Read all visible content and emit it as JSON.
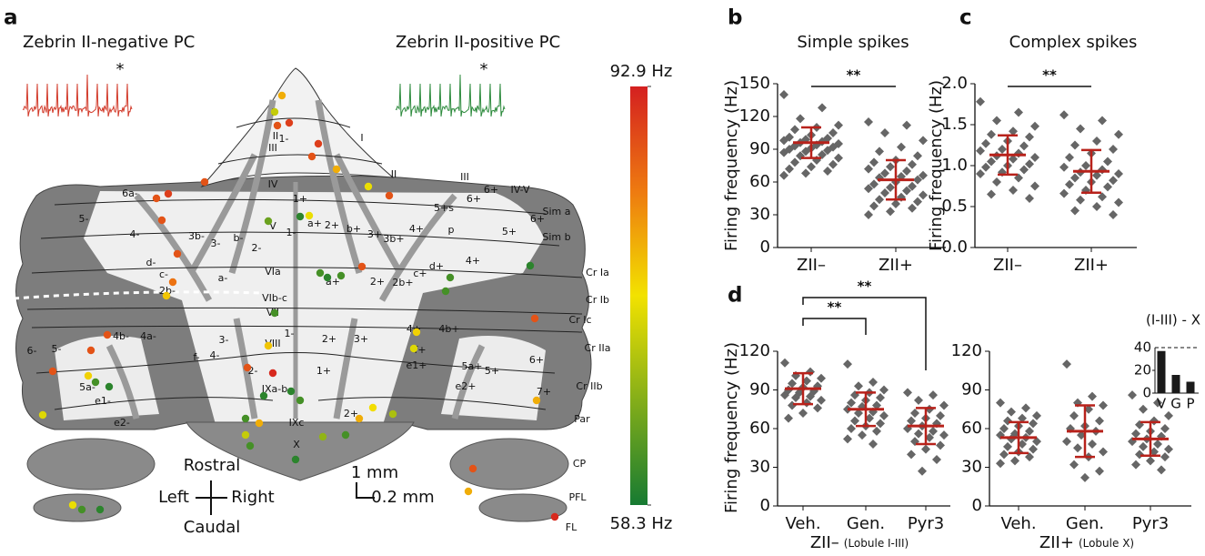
{
  "panel_a": {
    "label": "a",
    "title_left": "Zebrin II-negative PC",
    "title_right": "Zebrin II-positive PC",
    "asterisks": [
      "*",
      "*"
    ],
    "region_labels": [
      "I",
      "II",
      "III",
      "1-",
      "I",
      "II",
      "III",
      "IV",
      "V",
      "1+",
      "1-",
      "2-",
      "b-",
      "3-",
      "3b-",
      "4-",
      "5-",
      "6a-",
      "d-",
      "c-",
      "2b-",
      "a-",
      "VIa",
      "a+",
      "2+",
      "2b+",
      "c+",
      "d+",
      "4+",
      "5+",
      "6+",
      "6+",
      "6+",
      "5+s",
      "4+",
      "3b+",
      "3+",
      "b+",
      "a+",
      "2+",
      "p",
      "Sim a",
      "Sim b",
      "IV-V",
      "Cr Ia",
      "Cr Ib",
      "Cr Ic",
      "VIb-c",
      "VII",
      "VIII",
      "1-",
      "2+",
      "3+",
      "4+",
      "4b+",
      "5a+",
      "5+",
      "6+",
      "7+",
      "Cr IIa",
      "Cr IIb",
      "Par",
      "CP",
      "PFL",
      "FL",
      "f+",
      "e1+",
      "e2+",
      "1+",
      "2-",
      "4-",
      "3-",
      "f-",
      "4a-",
      "4b-",
      "5-",
      "6-",
      "5a-",
      "e1-",
      "e2-",
      "IXa-b",
      "IXc",
      "2+",
      "X"
    ],
    "orientation": {
      "rostral": "Rostral",
      "left": "Left",
      "right": "Right",
      "caudal": "Caudal"
    },
    "scale": [
      "1 mm",
      "0.2 mm"
    ],
    "colorbar": {
      "max": {
        "value": 92.9,
        "label": "92.9 Hz"
      },
      "min": {
        "value": 58.3,
        "label": "58.3 Hz"
      }
    },
    "recordings": [
      80,
      72,
      88,
      90,
      90,
      80,
      88,
      75,
      88,
      90,
      88,
      88,
      65,
      60,
      75,
      88,
      88,
      85,
      78,
      88,
      88,
      88,
      74,
      77,
      62,
      60,
      62,
      78,
      88,
      92,
      62,
      60,
      62,
      88,
      62,
      62,
      60,
      88,
      74,
      77,
      80,
      62,
      80,
      72,
      68,
      62,
      80,
      76,
      70,
      62,
      60,
      80,
      88,
      75,
      62,
      60,
      92,
      60,
      60,
      62
    ]
  },
  "chart_data": [
    {
      "type": "dotplot",
      "panel": "b",
      "title": "Simple spikes",
      "ylabel": "Firing frequency (Hz)",
      "categories": [
        "ZII–",
        "ZII+"
      ],
      "values": [
        [
          140,
          128,
          118,
          112,
          110,
          108,
          105,
          103,
          101,
          100,
          99,
          98,
          97,
          96,
          95,
          94,
          93,
          92,
          91,
          90,
          89,
          88,
          87,
          85,
          84,
          82,
          80,
          78,
          76,
          74,
          72,
          70,
          68,
          66
        ],
        [
          115,
          112,
          105,
          98,
          92,
          88,
          84,
          80,
          78,
          76,
          74,
          72,
          70,
          68,
          66,
          65,
          64,
          62,
          60,
          58,
          56,
          55,
          54,
          52,
          50,
          48,
          46,
          44,
          42,
          40,
          38,
          36,
          33,
          30
        ]
      ],
      "means": [
        96,
        62
      ],
      "errors": [
        14,
        18
      ],
      "ylim": [
        0,
        150
      ],
      "yticks": [
        0,
        30,
        60,
        90,
        120,
        150
      ],
      "significance": [
        "**"
      ]
    },
    {
      "type": "dotplot",
      "panel": "c",
      "title": "Complex spikes",
      "ylabel": "Firing frequency (Hz)",
      "categories": [
        "ZII–",
        "ZII+"
      ],
      "values": [
        [
          1.78,
          1.65,
          1.55,
          1.48,
          1.42,
          1.38,
          1.35,
          1.3,
          1.27,
          1.24,
          1.2,
          1.18,
          1.15,
          1.12,
          1.1,
          1.08,
          1.05,
          1.02,
          1.0,
          0.98,
          0.95,
          0.92,
          0.9,
          0.85,
          0.8,
          0.75,
          0.7,
          0.65,
          0.6
        ],
        [
          1.62,
          1.55,
          1.45,
          1.38,
          1.3,
          1.25,
          1.2,
          1.15,
          1.1,
          1.05,
          1.0,
          0.98,
          0.95,
          0.92,
          0.9,
          0.88,
          0.85,
          0.82,
          0.8,
          0.77,
          0.74,
          0.7,
          0.66,
          0.62,
          0.58,
          0.55,
          0.5,
          0.45,
          0.4
        ]
      ],
      "means": [
        1.13,
        0.93
      ],
      "errors": [
        0.24,
        0.26
      ],
      "ylim": [
        0,
        2
      ],
      "yticks": [
        {
          "value": 0,
          "label": "0.0"
        },
        0.5,
        {
          "value": 1,
          "label": "1.0"
        },
        1.5,
        {
          "value": 2,
          "label": "2.0"
        }
      ],
      "significance": [
        "**"
      ]
    },
    {
      "type": "dotplot",
      "panel": "d",
      "ylabel": "Firing frequency (Hz)",
      "categories": [
        "Veh.",
        "Gen.",
        "Pyr3"
      ],
      "xlabel": "ZII–",
      "xlabel_note": "(Lobule I-III)",
      "values": [
        [
          111,
          104,
          101,
          99,
          97,
          95,
          93,
          92,
          90,
          89,
          88,
          86,
          85,
          84,
          82,
          80,
          78,
          76,
          72,
          68
        ],
        [
          110,
          96,
          93,
          90,
          88,
          86,
          84,
          82,
          80,
          78,
          77,
          75,
          73,
          72,
          70,
          68,
          66,
          64,
          62,
          60,
          58,
          55,
          52,
          48
        ],
        [
          88,
          86,
          82,
          78,
          75,
          72,
          70,
          68,
          66,
          64,
          62,
          60,
          58,
          56,
          55,
          53,
          50,
          47,
          44,
          40,
          36,
          27
        ]
      ],
      "means": [
        91,
        75,
        62
      ],
      "errors": [
        12,
        13,
        14
      ],
      "ylim": [
        0,
        120
      ],
      "yticks": [
        0,
        30,
        60,
        90,
        120
      ],
      "significance": [
        "**",
        "**"
      ]
    },
    {
      "type": "dotplot",
      "categories": [
        "Veh.",
        "Gen.",
        "Pyr3"
      ],
      "xlabel": "ZII+",
      "xlabel_note": "(Lobule X)",
      "values": [
        [
          80,
          76,
          73,
          70,
          68,
          66,
          64,
          62,
          60,
          58,
          56,
          55,
          53,
          52,
          50,
          48,
          46,
          44,
          42,
          40,
          38,
          35,
          33
        ],
        [
          110,
          85,
          80,
          78,
          75,
          70,
          66,
          62,
          60,
          58,
          55,
          50,
          48,
          45,
          42,
          38,
          32,
          27,
          22
        ],
        [
          86,
          80,
          75,
          70,
          66,
          63,
          60,
          58,
          56,
          54,
          52,
          50,
          48,
          46,
          44,
          42,
          40,
          38,
          35,
          32,
          28
        ]
      ],
      "means": [
        53,
        58,
        52
      ],
      "errors": [
        12,
        20,
        13
      ],
      "ylim": [
        0,
        120
      ],
      "yticks": [
        0,
        30,
        60,
        90,
        120
      ]
    },
    {
      "type": "bar",
      "title": "(I-III) - X",
      "categories": [
        "V",
        "G",
        "P"
      ],
      "values": [
        37,
        16,
        10
      ],
      "color": "#1a1a1a",
      "ylim": [
        0,
        40
      ],
      "yticks": [
        0,
        20,
        40
      ]
    }
  ]
}
